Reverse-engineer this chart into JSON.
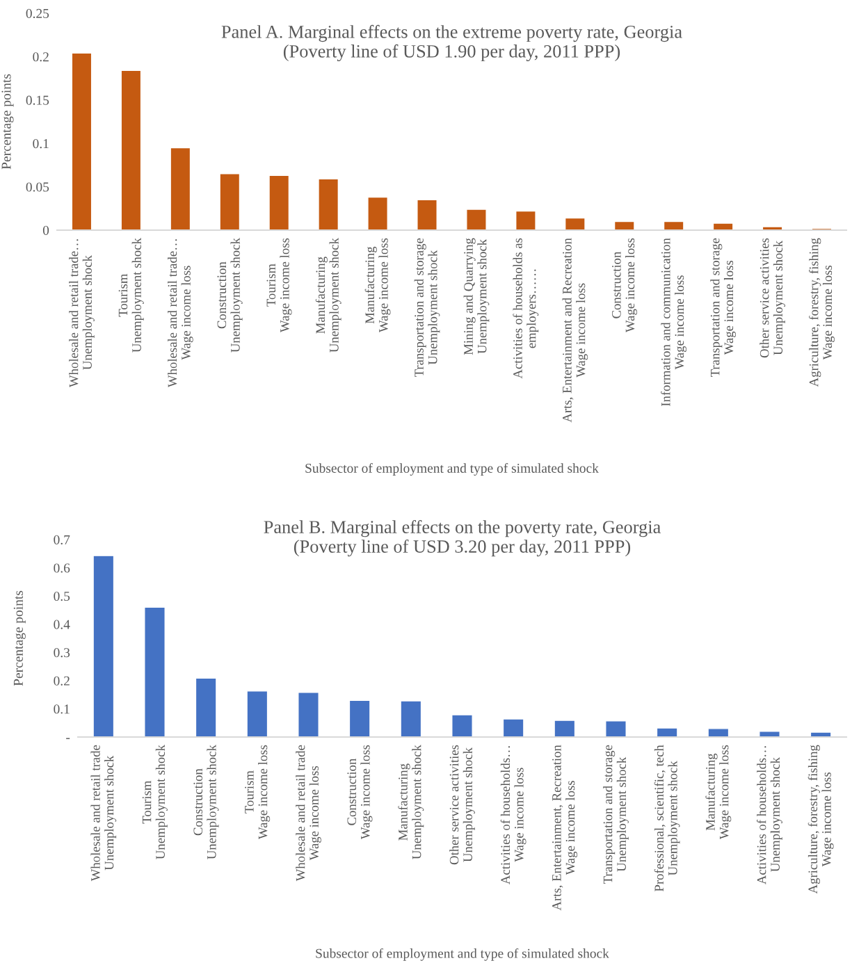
{
  "chart_data": [
    {
      "type": "bar",
      "title": "Panel A. Marginal effects on the extreme poverty rate, Georgia\n(Poverty line of USD 1.90 per day, 2011 PPP)",
      "xlabel": "Subsector of employment and type of simulated shock",
      "ylabel": "Percentage points",
      "categories": [
        "Wholesale and retail trade…\nUnemployment shock",
        "Tourism\nUnemployment shock",
        "Wholesale and retail trade…\nWage income loss",
        "Construction\nUnemployment shock",
        "Tourism\nWage income loss",
        "Manufacturing\nUnemployment shock",
        "Manufacturing\nWage income loss",
        "Transportation and storage\nUnemployment shock",
        "Mining and Quarrying\nUnemployment shock",
        "Activities of households as\nemployers……",
        "Arts, Entertainment and Recreation\nWage income loss",
        "Construction\nWage income loss",
        "Information and communication\nWage income loss",
        "Transportation and storage\nWage income loss",
        "Other service activities\nUnemployment shock",
        "Agriculture, forestry, fishing\nWage income loss"
      ],
      "series": [
        {
          "color": "#c55a11",
          "values": [
            0.204,
            0.184,
            0.095,
            0.065,
            0.063,
            0.059,
            0.038,
            0.035,
            0.024,
            0.022,
            0.014,
            0.01,
            0.01,
            0.008,
            0.004,
            0.002
          ]
        }
      ],
      "ylim": [
        0,
        0.25
      ],
      "yticks": [
        0,
        0.05,
        0.1,
        0.15,
        0.2,
        0.25
      ],
      "grid": false
    },
    {
      "type": "bar",
      "title": "Panel B. Marginal effects on the poverty rate, Georgia\n(Poverty line of USD 3.20 per day, 2011 PPP)",
      "xlabel": "Subsector of employment and type of simulated shock",
      "ylabel": "Percentage points",
      "categories": [
        "Wholesale and retail trade\nUnemployment shock",
        "Tourism\nUnemployment shock",
        "Construction\nUnemployment shock",
        "Tourism\nWage income loss",
        "Wholesale and retail trade\nWage income loss",
        "Construction\nWage income loss",
        "Manufacturing\nUnemployment shock",
        "Other service activities\nUnemployment shock",
        "Activities of households…\nWage income loss",
        "Arts, Entertainment, Recreation\nWage income loss",
        "Transportation and storage\nUnemployment shock",
        "Professional, scientific, tech\nUnemployment shock",
        "Manufacturing\nWage income loss",
        "Activities of households…\nUnemployment shock",
        "Agriculture, forestry, fishing\nWage income loss"
      ],
      "series": [
        {
          "color": "#4472c4",
          "values": [
            0.643,
            0.46,
            0.209,
            0.163,
            0.158,
            0.13,
            0.128,
            0.079,
            0.064,
            0.059,
            0.057,
            0.032,
            0.03,
            0.02,
            0.017
          ]
        }
      ],
      "ylim": [
        0,
        0.7
      ],
      "yticks": [
        {
          "value": 0,
          "label": "-"
        },
        0.1,
        0.2,
        0.3,
        0.4,
        0.5,
        0.6,
        0.7
      ],
      "grid": false
    }
  ]
}
